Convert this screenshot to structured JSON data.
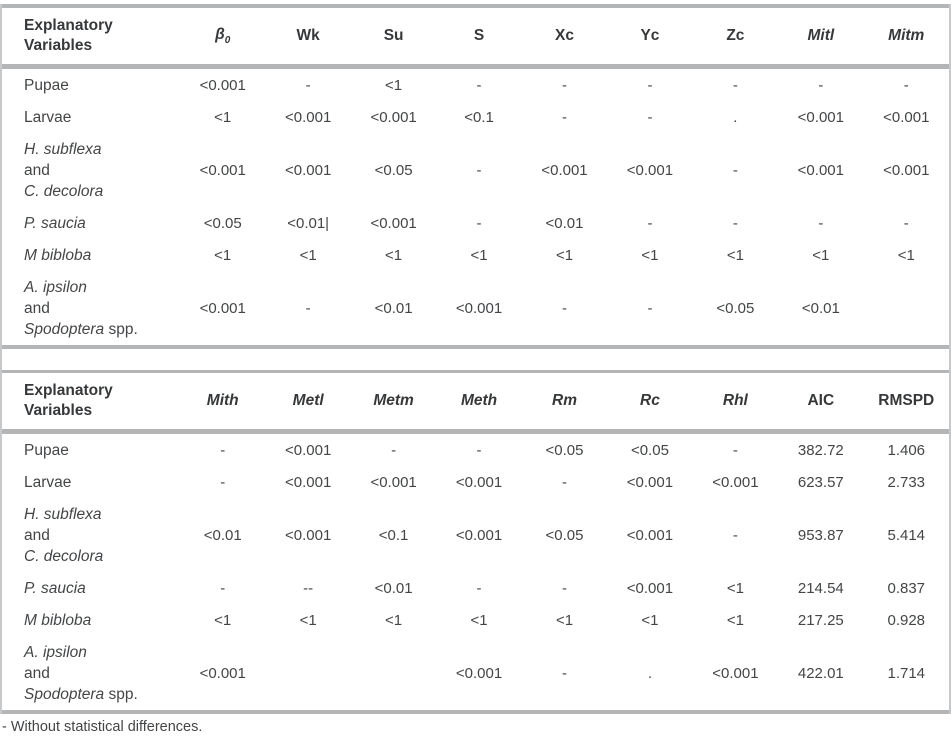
{
  "footer": {
    "note": "- Without statistical differences."
  },
  "tables": [
    {
      "name": "anova-table-1",
      "header_label_lines": [
        "Explanatory",
        "Variables"
      ],
      "columns": [
        {
          "t": "β",
          "sub": "0",
          "i": true
        },
        {
          "t": "Wk",
          "i": false
        },
        {
          "t": "Su",
          "i": false
        },
        {
          "t": "S",
          "i": false
        },
        {
          "t": "Xc",
          "i": false
        },
        {
          "t": "Yc",
          "i": false
        },
        {
          "t": "Zc",
          "i": false
        },
        {
          "t": "Mitl",
          "i": true
        },
        {
          "t": "Mitm",
          "i": true
        }
      ],
      "rows": [
        {
          "label_lines": [
            [
              {
                "t": "Pupae",
                "i": false
              }
            ]
          ],
          "values": [
            "<0.001",
            "-",
            "<1",
            "-",
            "-",
            "-",
            "-",
            "-",
            "-"
          ]
        },
        {
          "label_lines": [
            [
              {
                "t": "Larvae",
                "i": false
              }
            ]
          ],
          "values": [
            "<1",
            "<0.001",
            "<0.001",
            "<0.1",
            "-",
            "-",
            ".",
            "<0.001",
            "<0.001"
          ]
        },
        {
          "label_lines": [
            [
              {
                "t": "H. subflexa",
                "i": true
              }
            ],
            [
              {
                "t": "and",
                "i": false
              }
            ],
            [
              {
                "t": "C. decolora",
                "i": true
              }
            ]
          ],
          "values": [
            "<0.001",
            "<0.001",
            "<0.05",
            "-",
            "<0.001",
            "<0.001",
            "-",
            "<0.001",
            "<0.001"
          ]
        },
        {
          "label_lines": [
            [
              {
                "t": "P. saucia",
                "i": true
              }
            ]
          ],
          "values": [
            "<0.05",
            "<0.01|",
            "<0.001",
            "-",
            "<0.01",
            "-",
            "-",
            "-",
            "-"
          ]
        },
        {
          "label_lines": [
            [
              {
                "t": "M bibloba",
                "i": true
              }
            ]
          ],
          "values": [
            "<1",
            "<1",
            "<1",
            "<1",
            "<1",
            "<1",
            "<1",
            "<1",
            "<1"
          ]
        },
        {
          "label_lines": [
            [
              {
                "t": "A. ipsilon",
                "i": true
              }
            ],
            [
              {
                "t": "and",
                "i": false
              }
            ],
            [
              {
                "t": "Spodoptera",
                "i": true
              },
              {
                "t": " spp.",
                "i": false
              }
            ]
          ],
          "values": [
            "<0.001",
            "-",
            "<0.01",
            "<0.001",
            "-",
            "-",
            "<0.05",
            "<0.01",
            ""
          ]
        }
      ]
    },
    {
      "name": "anova-table-2",
      "header_label_lines": [
        "Explanatory",
        "Variables"
      ],
      "columns": [
        {
          "t": "Mith",
          "i": true
        },
        {
          "t": "Metl",
          "i": true
        },
        {
          "t": "Metm",
          "i": true
        },
        {
          "t": "Meth",
          "i": true
        },
        {
          "t": "Rm",
          "i": true
        },
        {
          "t": "Rc",
          "i": true
        },
        {
          "t": "Rhl",
          "i": true
        },
        {
          "t": "AIC",
          "i": false
        },
        {
          "t": "RMSPD",
          "i": false
        }
      ],
      "rows": [
        {
          "label_lines": [
            [
              {
                "t": "Pupae",
                "i": false
              }
            ]
          ],
          "values": [
            "-",
            "<0.001",
            "-",
            "-",
            "<0.05",
            "<0.05",
            "-",
            "382.72",
            "1.406"
          ]
        },
        {
          "label_lines": [
            [
              {
                "t": "Larvae",
                "i": false
              }
            ]
          ],
          "values": [
            "-",
            "<0.001",
            "<0.001",
            "<0.001",
            "-",
            "<0.001",
            "<0.001",
            "623.57",
            "2.733"
          ]
        },
        {
          "label_lines": [
            [
              {
                "t": "H. subflexa",
                "i": true
              }
            ],
            [
              {
                "t": "and",
                "i": false
              }
            ],
            [
              {
                "t": "C. decolora",
                "i": true
              }
            ]
          ],
          "values": [
            "<0.01",
            "<0.001",
            "<0.1",
            "<0.001",
            "<0.05",
            "<0.001",
            "-",
            "953.87",
            "5.414"
          ]
        },
        {
          "label_lines": [
            [
              {
                "t": "P. saucia",
                "i": true
              }
            ]
          ],
          "values": [
            "-",
            "--",
            "<0.01",
            "-",
            "-",
            "<0.001",
            "<1",
            "214.54",
            "0.837"
          ]
        },
        {
          "label_lines": [
            [
              {
                "t": "M bibloba",
                "i": true
              }
            ]
          ],
          "values": [
            "<1",
            "<1",
            "<1",
            "<1",
            "<1",
            "<1",
            "<1",
            "217.25",
            "0.928"
          ]
        },
        {
          "label_lines": [
            [
              {
                "t": "A. ipsilon",
                "i": true
              }
            ],
            [
              {
                "t": "and",
                "i": false
              }
            ],
            [
              {
                "t": "Spodoptera",
                "i": true
              },
              {
                "t": " spp.",
                "i": false
              }
            ]
          ],
          "values": [
            "<0.001",
            "",
            "",
            "<0.001",
            "-",
            ".",
            "<0.001",
            "422.01",
            "1.714"
          ]
        }
      ]
    }
  ]
}
